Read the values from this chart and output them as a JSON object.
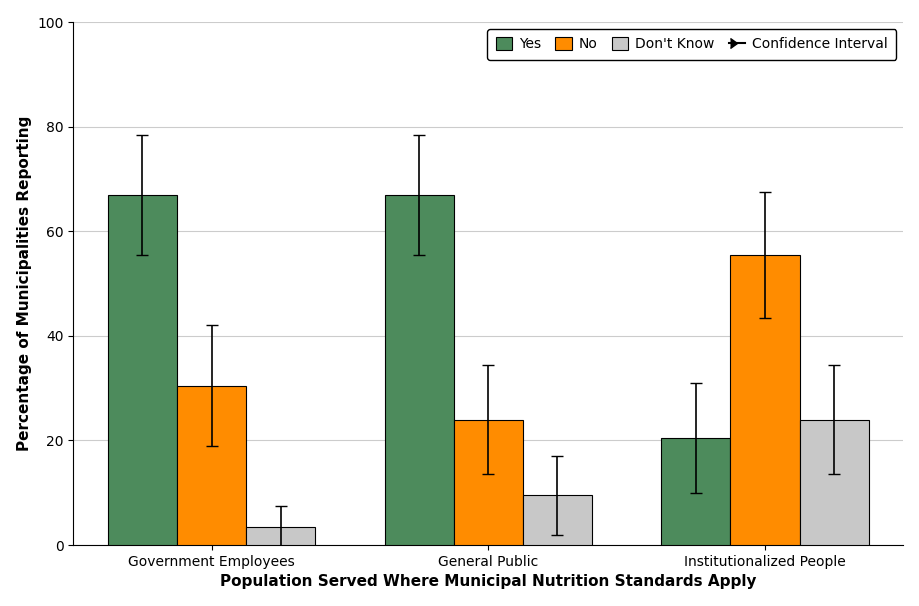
{
  "categories": [
    "Government Employees",
    "General Public",
    "Institutionalized People"
  ],
  "bar_width": 0.25,
  "series": {
    "Yes": {
      "values": [
        67.0,
        67.0,
        20.5
      ],
      "errors": [
        11.5,
        11.5,
        10.5
      ],
      "color": "#4d8b5c"
    },
    "No": {
      "values": [
        30.5,
        24.0,
        55.5
      ],
      "errors": [
        11.5,
        10.5,
        12.0
      ],
      "color": "#ff8c00"
    },
    "Don't Know": {
      "values": [
        3.5,
        9.5,
        24.0
      ],
      "errors": [
        4.0,
        7.5,
        10.5
      ],
      "color": "#c8c8c8"
    }
  },
  "xlabel": "Population Served Where Municipal Nutrition Standards Apply",
  "ylabel": "Percentage of Municipalities Reporting",
  "ylim": [
    0,
    100
  ],
  "yticks": [
    0,
    20,
    40,
    60,
    80,
    100
  ],
  "axis_label_fontsize": 11,
  "tick_fontsize": 10,
  "legend_fontsize": 10,
  "bar_edge_color": "black",
  "bar_edge_width": 0.8,
  "error_color": "black",
  "error_capsize": 4,
  "error_linewidth": 1.2,
  "grid_color": "#cccccc",
  "background_color": "#ffffff"
}
